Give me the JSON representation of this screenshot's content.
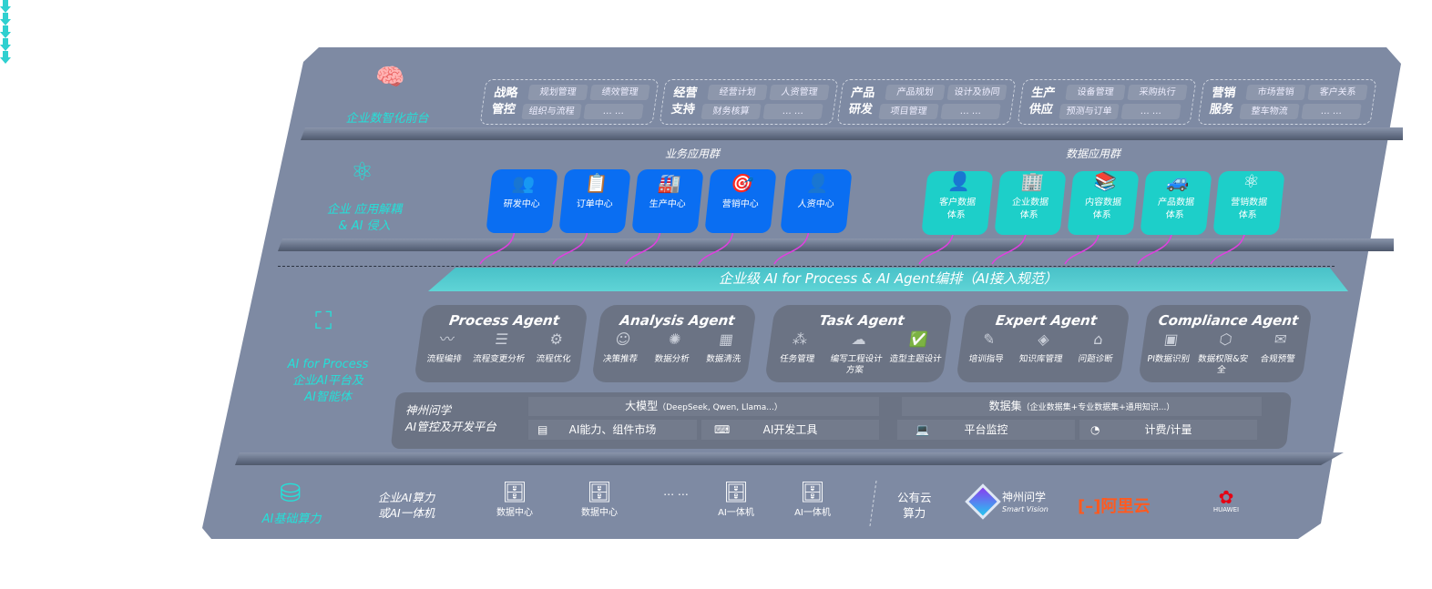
{
  "colors": {
    "panel": "#7e8aa3",
    "accent": "#25e0d8",
    "biz_card": "#0a6ef2",
    "data_card": "#1dcfc9",
    "arrow": "#e040e0",
    "agent_card": "#6b7384"
  },
  "layers": {
    "front": {
      "label": "企业数智化前台",
      "icon": "brain-icon"
    },
    "apps": {
      "label1": "企业 应用解耦",
      "label2": "& AI 侵入",
      "icon": "molecule-icon"
    },
    "ai": {
      "label1": "AI for Process",
      "label2": "企业AI平台及",
      "label3": "AI智能体",
      "icon": "user-scan-icon"
    },
    "compute": {
      "label": "AI基础算力",
      "icon": "database-icon"
    }
  },
  "front_groups": [
    {
      "title": "战略管控",
      "items": [
        "规划管理",
        "绩效管理",
        "组织与流程",
        "… …"
      ]
    },
    {
      "title": "经营支持",
      "items": [
        "经营计划",
        "人资管理",
        "财务核算",
        "… …"
      ]
    },
    {
      "title": "产品研发",
      "items": [
        "产品规划",
        "设计及协同",
        "项目管理",
        "… …"
      ]
    },
    {
      "title": "生产供应",
      "items": [
        "设备管理",
        "采购执行",
        "预测与订单",
        "… …"
      ]
    },
    {
      "title": "营销服务",
      "items": [
        "市场营销",
        "客户关系",
        "整车物流",
        "… …"
      ]
    }
  ],
  "biz_apps": {
    "title": "业务应用群",
    "items": [
      "研发中心",
      "订单中心",
      "生产中心",
      "营销中心",
      "人资中心"
    ]
  },
  "data_apps": {
    "title": "数据应用群",
    "items": [
      "客户数据体系",
      "企业数据体系",
      "内容数据体系",
      "产品数据体系",
      "营销数据体系"
    ]
  },
  "banner": "企业级 AI for Process & AI Agent编排（AI接入规范）",
  "agents": [
    {
      "name": "Process Agent",
      "items": [
        "流程编排",
        "流程变更分析",
        "流程优化"
      ]
    },
    {
      "name": "Analysis Agent",
      "items": [
        "决策推荐",
        "数据分析",
        "数据清洗"
      ]
    },
    {
      "name": "Task Agent",
      "items": [
        "任务管理",
        "编写工程设计方案",
        "造型主题设计"
      ]
    },
    {
      "name": "Expert Agent",
      "items": [
        "培训指导",
        "知识库管理",
        "问题诊断"
      ]
    },
    {
      "name": "Compliance Agent",
      "items": [
        "PI数据识别",
        "数据权限&安全",
        "合规预警"
      ]
    }
  ],
  "platform": {
    "title1": "神州问学",
    "title2": "AI管控及开发平台",
    "llm": "大模型",
    "llm_note": "（DeepSeek, Qwen, Llama...）",
    "market": "AI能力、组件市场",
    "devtools": "AI开发工具",
    "dataset": "数据集",
    "dataset_note": "（企业数据集+专业数据集+通用知识...）",
    "monitor": "平台监控",
    "billing": "计费/计量"
  },
  "compute": {
    "private_label1": "企业AI算力",
    "private_label2": "或AI一体机",
    "items": [
      "数据中心",
      "数据中心",
      "… …",
      "AI一体机",
      "AI一体机"
    ],
    "public_label1": "公有云",
    "public_label2": "算力",
    "vendors": [
      "神州问学",
      "Smart Vision",
      "阿里云",
      "HUAWEI"
    ]
  }
}
